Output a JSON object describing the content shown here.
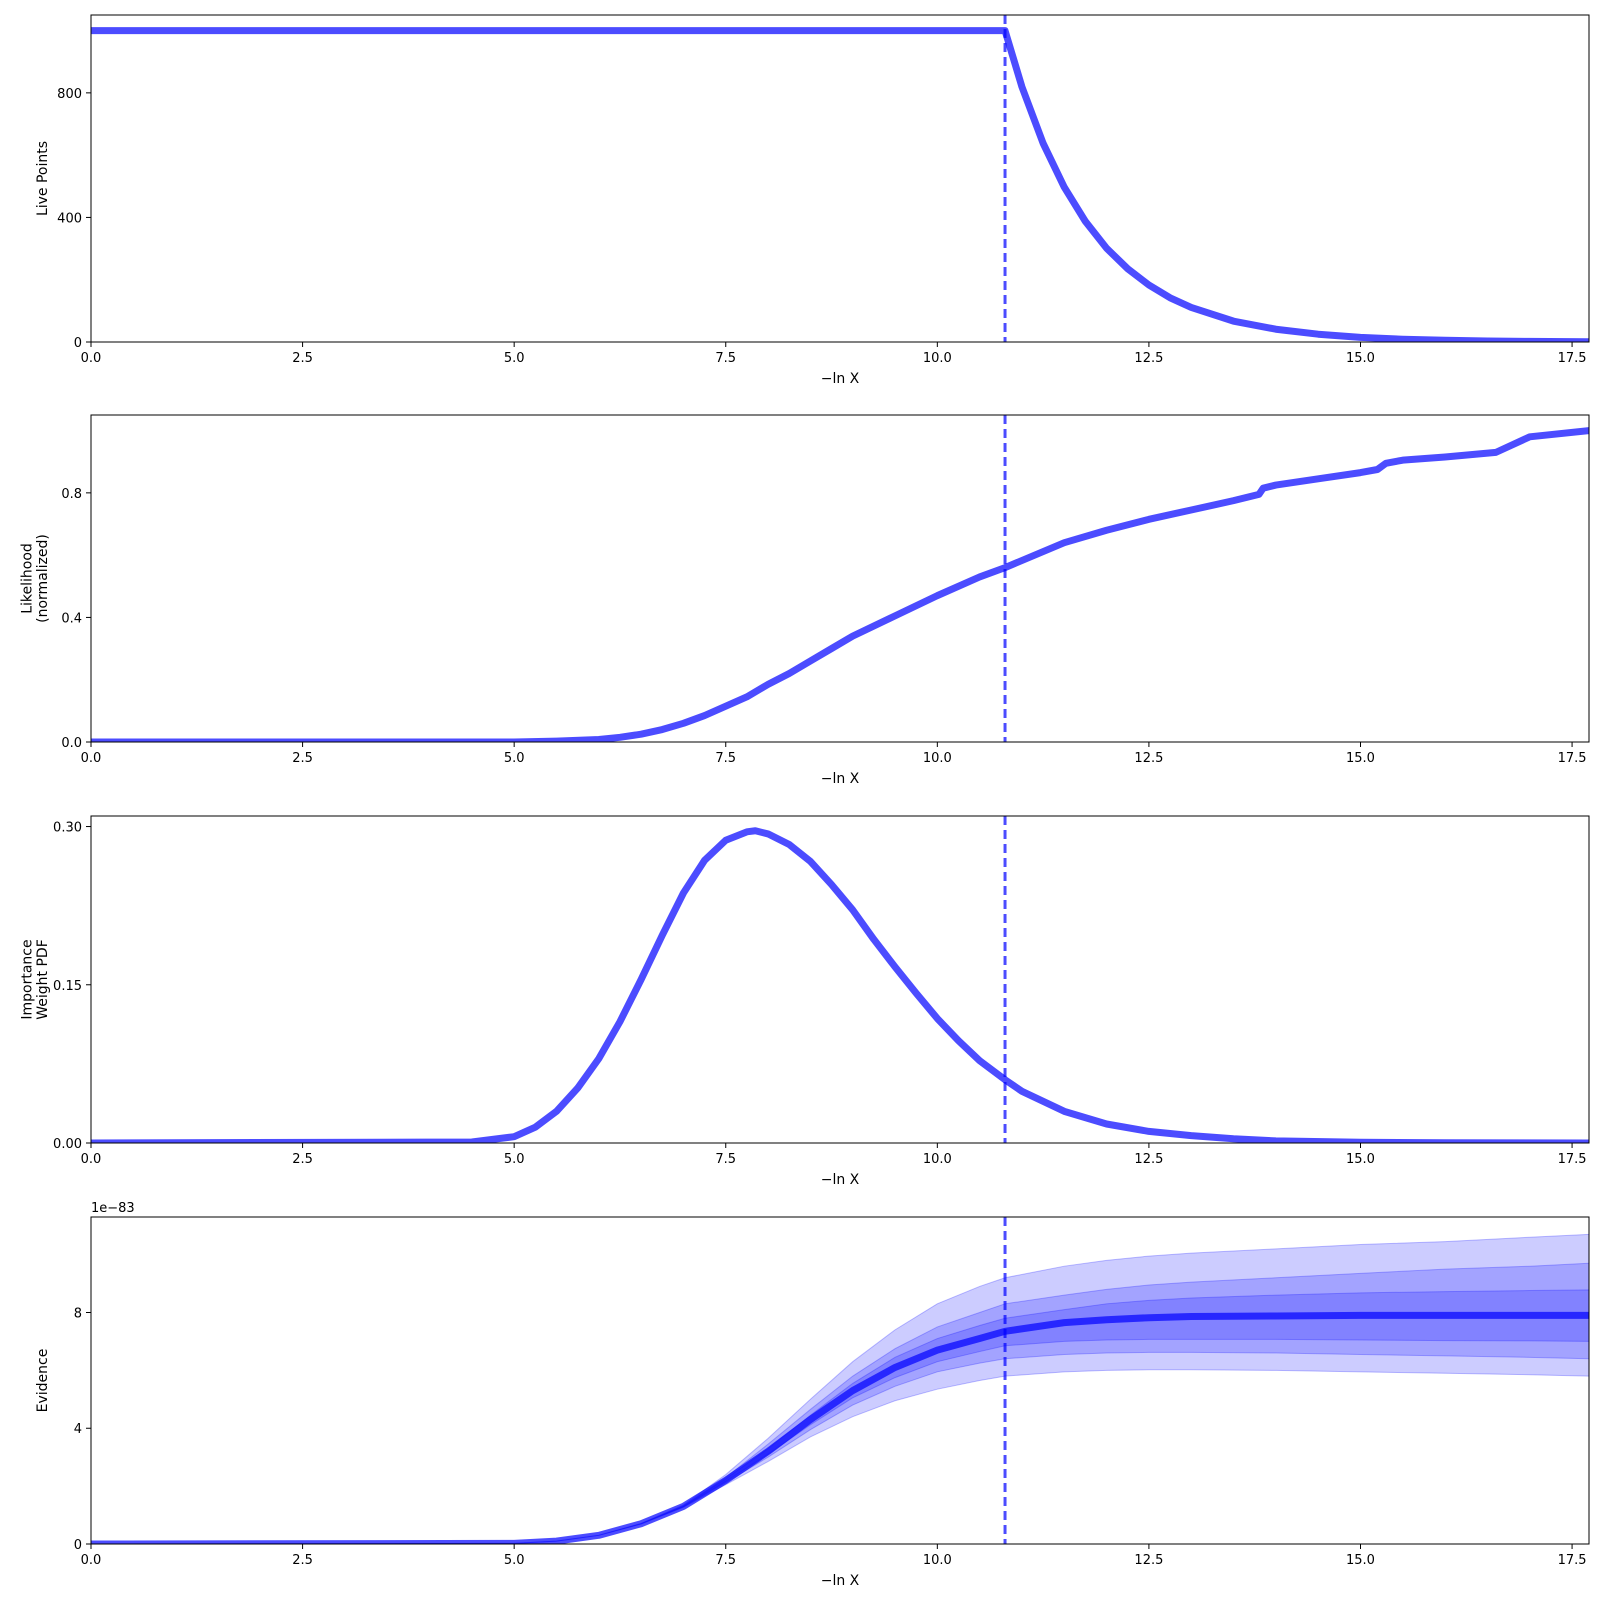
{
  "style": {
    "line_color": "#0000ff",
    "line_alpha": 0.7,
    "band_alpha": 0.2
  },
  "chart_data": [
    {
      "type": "line",
      "xlabel": "−ln X",
      "ylabel": "Live Points",
      "xlim": [
        0,
        17.7
      ],
      "ylim": [
        0,
        1050
      ],
      "xticks": [
        "0.0",
        "2.5",
        "5.0",
        "7.5",
        "10.0",
        "12.5",
        "15.0",
        "17.5"
      ],
      "yticks": [
        "0",
        "400",
        "800"
      ],
      "marker_x": 10.8,
      "series": [
        {
          "x": [
            0,
            10.8,
            11.0,
            11.25,
            11.5,
            11.75,
            12.0,
            12.25,
            12.5,
            12.75,
            13.0,
            13.5,
            14.0,
            14.5,
            15.0,
            15.5,
            16.0,
            16.5,
            17.0,
            17.7
          ],
          "y": [
            1000,
            1000,
            819,
            638,
            497,
            387,
            301,
            235,
            183,
            142,
            111,
            67,
            41,
            25,
            15,
            9,
            5.5,
            3.3,
            2,
            1
          ]
        }
      ]
    },
    {
      "type": "line",
      "xlabel": "−ln X",
      "ylabel": "Likelihood\n(normalized)",
      "xlim": [
        0,
        17.7
      ],
      "ylim": [
        0,
        1.05
      ],
      "xticks": [
        "0.0",
        "2.5",
        "5.0",
        "7.5",
        "10.0",
        "12.5",
        "15.0",
        "17.5"
      ],
      "yticks": [
        "0.0",
        "0.4",
        "0.8"
      ],
      "marker_x": 10.8,
      "series": [
        {
          "x": [
            0,
            5.0,
            5.5,
            6.0,
            6.25,
            6.5,
            6.75,
            7.0,
            7.25,
            7.5,
            7.75,
            8.0,
            8.25,
            8.5,
            8.75,
            9.0,
            9.5,
            10.0,
            10.5,
            10.8,
            11.5,
            12.0,
            12.5,
            13.0,
            13.5,
            13.8,
            13.85,
            14.0,
            14.5,
            15.0,
            15.2,
            15.3,
            15.5,
            16.0,
            16.6,
            17.0,
            17.7
          ],
          "y": [
            0,
            0,
            0.003,
            0.008,
            0.015,
            0.025,
            0.04,
            0.06,
            0.085,
            0.115,
            0.145,
            0.185,
            0.22,
            0.26,
            0.3,
            0.34,
            0.405,
            0.47,
            0.53,
            0.56,
            0.64,
            0.68,
            0.715,
            0.745,
            0.775,
            0.795,
            0.815,
            0.825,
            0.845,
            0.865,
            0.875,
            0.895,
            0.905,
            0.915,
            0.93,
            0.98,
            1.0
          ]
        }
      ]
    },
    {
      "type": "line",
      "xlabel": "−ln X",
      "ylabel": "Importance\nWeight PDF",
      "xlim": [
        0,
        17.7
      ],
      "ylim": [
        0,
        0.31
      ],
      "xticks": [
        "0.0",
        "2.5",
        "5.0",
        "7.5",
        "10.0",
        "12.5",
        "15.0",
        "17.5"
      ],
      "yticks": [
        "0.00",
        "0.15",
        "0.30"
      ],
      "marker_x": 10.8,
      "series": [
        {
          "x": [
            0,
            4.5,
            5.0,
            5.25,
            5.5,
            5.75,
            6.0,
            6.25,
            6.5,
            6.75,
            7.0,
            7.25,
            7.5,
            7.75,
            7.85,
            8.0,
            8.25,
            8.5,
            8.75,
            9.0,
            9.25,
            9.5,
            9.75,
            10.0,
            10.25,
            10.5,
            10.8,
            11.0,
            11.5,
            12.0,
            12.5,
            13.0,
            13.5,
            14.0,
            15.0,
            16.0,
            17.7
          ],
          "y": [
            0,
            0.001,
            0.006,
            0.015,
            0.03,
            0.052,
            0.08,
            0.115,
            0.155,
            0.197,
            0.237,
            0.268,
            0.287,
            0.295,
            0.296,
            0.293,
            0.283,
            0.267,
            0.245,
            0.221,
            0.193,
            0.167,
            0.142,
            0.118,
            0.097,
            0.078,
            0.06,
            0.049,
            0.03,
            0.018,
            0.011,
            0.007,
            0.004,
            0.002,
            0.0007,
            0.0002,
            0
          ]
        }
      ]
    },
    {
      "type": "area",
      "xlabel": "−ln X",
      "ylabel": "Evidence",
      "offset_label": "1e−83",
      "xlim": [
        0,
        17.7
      ],
      "ylim": [
        0,
        11.3
      ],
      "xticks": [
        "0.0",
        "2.5",
        "5.0",
        "7.5",
        "10.0",
        "12.5",
        "15.0",
        "17.5"
      ],
      "yticks": [
        "0",
        "4",
        "8"
      ],
      "marker_x": 10.8,
      "x": [
        0,
        5.0,
        5.5,
        6.0,
        6.5,
        7.0,
        7.5,
        8.0,
        8.5,
        9.0,
        9.5,
        10.0,
        10.5,
        10.8,
        11.5,
        12.0,
        12.5,
        13.0,
        14.0,
        15.0,
        16.0,
        17.0,
        17.7
      ],
      "mean": [
        0,
        0.02,
        0.1,
        0.3,
        0.7,
        1.3,
        2.2,
        3.2,
        4.3,
        5.3,
        6.1,
        6.7,
        7.1,
        7.35,
        7.65,
        7.75,
        7.82,
        7.86,
        7.88,
        7.9,
        7.9,
        7.9,
        7.9
      ],
      "bands": [
        {
          "lower": [
            0,
            0.02,
            0.1,
            0.3,
            0.69,
            1.27,
            2.05,
            2.85,
            3.7,
            4.4,
            4.95,
            5.35,
            5.65,
            5.8,
            5.95,
            6.0,
            6.02,
            6.02,
            6.0,
            5.95,
            5.9,
            5.85,
            5.8
          ],
          "upper": [
            0,
            0.02,
            0.1,
            0.3,
            0.71,
            1.35,
            2.4,
            3.65,
            5.0,
            6.3,
            7.4,
            8.3,
            8.9,
            9.2,
            9.6,
            9.8,
            9.95,
            10.05,
            10.2,
            10.35,
            10.45,
            10.6,
            10.7
          ]
        },
        {
          "lower": [
            0,
            0.02,
            0.1,
            0.3,
            0.695,
            1.28,
            2.12,
            3.0,
            3.95,
            4.8,
            5.45,
            5.95,
            6.25,
            6.4,
            6.55,
            6.6,
            6.62,
            6.62,
            6.6,
            6.55,
            6.5,
            6.45,
            6.4
          ],
          "upper": [
            0,
            0.02,
            0.1,
            0.3,
            0.705,
            1.32,
            2.3,
            3.45,
            4.65,
            5.8,
            6.75,
            7.5,
            8.0,
            8.3,
            8.6,
            8.8,
            8.95,
            9.05,
            9.2,
            9.35,
            9.5,
            9.6,
            9.7
          ]
        },
        {
          "lower": [
            0,
            0.02,
            0.1,
            0.3,
            0.698,
            1.29,
            2.16,
            3.1,
            4.12,
            5.05,
            5.75,
            6.3,
            6.65,
            6.85,
            7.0,
            7.05,
            7.07,
            7.07,
            7.07,
            7.05,
            7.03,
            7.02,
            7.0
          ],
          "upper": [
            0,
            0.02,
            0.1,
            0.3,
            0.702,
            1.31,
            2.25,
            3.3,
            4.45,
            5.55,
            6.45,
            7.1,
            7.55,
            7.8,
            8.1,
            8.3,
            8.42,
            8.5,
            8.6,
            8.68,
            8.72,
            8.76,
            8.78
          ]
        }
      ]
    }
  ]
}
